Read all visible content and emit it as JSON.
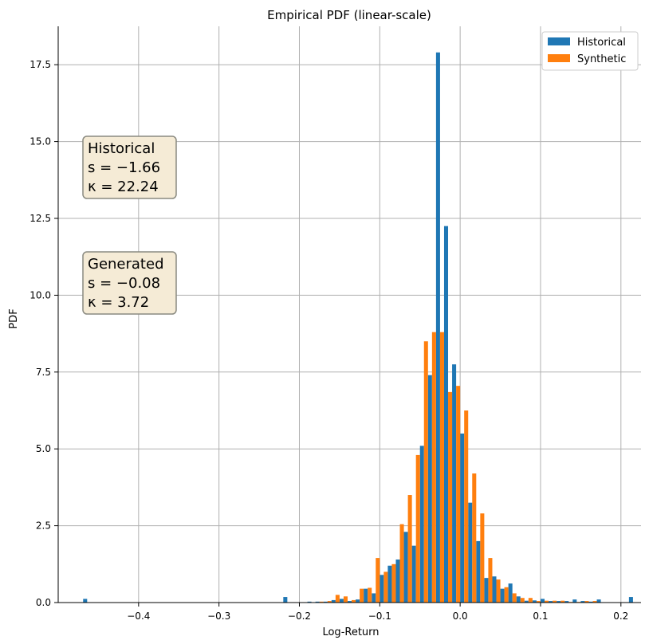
{
  "chart_data": {
    "type": "bar",
    "title": "Empirical PDF (linear-scale)",
    "xlabel": "Log-Return",
    "ylabel": "PDF",
    "xlim": [
      -0.5,
      0.225
    ],
    "ylim": [
      0,
      18.75
    ],
    "xticks": [
      -0.4,
      -0.3,
      -0.2,
      -0.1,
      0.0,
      0.1,
      0.2
    ],
    "xtick_labels": [
      "−0.4",
      "−0.3",
      "−0.2",
      "−0.1",
      "0.0",
      "0.1",
      "0.2"
    ],
    "yticks": [
      0.0,
      2.5,
      5.0,
      7.5,
      10.0,
      12.5,
      15.0,
      17.5
    ],
    "ytick_labels": [
      "0.0",
      "2.5",
      "5.0",
      "7.5",
      "10.0",
      "12.5",
      "15.0",
      "17.5"
    ],
    "grid": true,
    "legend_position": "top-right",
    "colors": {
      "Historical": "#1f77b4",
      "Synthetic": "#ff7f0e"
    },
    "series": [
      {
        "name": "Historical",
        "x": [
          -0.464,
          -0.215,
          -0.185,
          -0.175,
          -0.165,
          -0.155,
          -0.145,
          -0.135,
          -0.125,
          -0.115,
          -0.105,
          -0.095,
          -0.085,
          -0.075,
          -0.065,
          -0.055,
          -0.045,
          -0.035,
          -0.025,
          -0.015,
          -0.005,
          0.005,
          0.015,
          0.025,
          0.035,
          0.045,
          0.055,
          0.065,
          0.075,
          0.085,
          0.095,
          0.105,
          0.115,
          0.125,
          0.135,
          0.145,
          0.155,
          0.165,
          0.175,
          0.215
        ],
        "y": [
          0.12,
          0.18,
          0.03,
          0.03,
          0.03,
          0.08,
          0.12,
          0.05,
          0.1,
          0.45,
          0.3,
          0.9,
          1.2,
          1.4,
          2.3,
          1.85,
          5.1,
          7.4,
          17.9,
          12.25,
          7.75,
          5.5,
          3.25,
          2.0,
          0.8,
          0.85,
          0.45,
          0.62,
          0.2,
          0.06,
          0.07,
          0.12,
          0.05,
          0.05,
          0.05,
          0.1,
          0.05,
          0.03,
          0.1,
          0.18
        ]
      },
      {
        "name": "Synthetic",
        "x": [
          -0.175,
          -0.165,
          -0.155,
          -0.145,
          -0.135,
          -0.125,
          -0.115,
          -0.105,
          -0.095,
          -0.085,
          -0.075,
          -0.065,
          -0.055,
          -0.045,
          -0.035,
          -0.025,
          -0.015,
          -0.005,
          0.005,
          0.015,
          0.025,
          0.035,
          0.045,
          0.055,
          0.065,
          0.075,
          0.085,
          0.095,
          0.105,
          0.115,
          0.125,
          0.135,
          0.145,
          0.155,
          0.165
        ],
        "y": [
          0.03,
          0.05,
          0.25,
          0.2,
          0.08,
          0.45,
          0.48,
          1.45,
          1.0,
          1.25,
          2.55,
          3.5,
          4.8,
          8.5,
          8.8,
          8.8,
          6.85,
          7.05,
          6.25,
          4.2,
          2.9,
          1.45,
          0.75,
          0.5,
          0.3,
          0.15,
          0.15,
          0.05,
          0.06,
          0.06,
          0.06,
          0.02,
          0.02,
          0.05,
          0.05
        ]
      }
    ],
    "annotations": [
      {
        "lines": [
          "Historical",
          "s = −1.66",
          "κ = 22.24"
        ]
      },
      {
        "lines": [
          "Generated",
          "s = −0.08",
          "κ = 3.72"
        ]
      }
    ]
  }
}
